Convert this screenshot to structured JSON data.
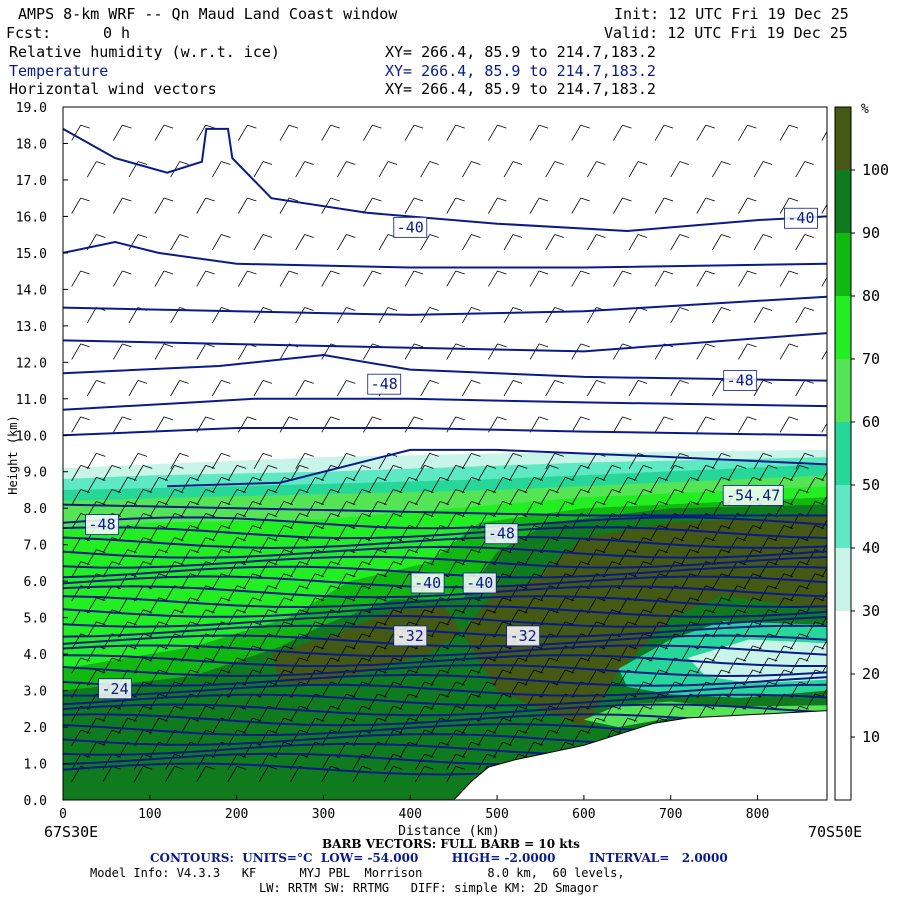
{
  "header": {
    "title": "AMPS 8-km WRF -- Qn Maud Land Coast window",
    "init": "Init: 12 UTC Fri 19 Dec 25",
    "fcst_label": "Fcst:",
    "fcst_value": "0 h",
    "valid": "Valid: 12 UTC Fri 19 Dec 25",
    "fields": [
      {
        "name": "Relative humidity (w.r.t. ice)",
        "xy": "XY= 266.4, 85.9 to 214.7,183.2"
      },
      {
        "name": "Temperature",
        "xy": "XY= 266.4, 85.9 to 214.7,183.2"
      },
      {
        "name": "Horizontal wind vectors",
        "xy": "XY= 266.4, 85.9 to 214.7,183.2"
      }
    ]
  },
  "footer": {
    "left_coord": "67S30E",
    "right_coord": "70S50E",
    "barb_note": "BARB VECTORS: FULL BARB = 10 kts",
    "contours_note": "CONTOURS:  UNITS=°C  LOW= -54.000        HIGH= -2.0000        INTERVAL=   2.0000",
    "model_info_1": "Model Info: V4.3.3   KF      MYJ PBL  Morrison         8.0 km,  60 levels,",
    "model_info_2": "LW: RRTM SW: RRTMG   DIFF: simple KM: 2D Smagor"
  },
  "colors": {
    "contour": "#0a1a8a",
    "rh_30_40": "#c8f5e8",
    "rh_40_50": "#5ee8c4",
    "rh_50_60": "#27d79a",
    "rh_60_70": "#55e455",
    "rh_70_80": "#22ee22",
    "rh_80_90": "#10b810",
    "rh_90_100": "#0f7a1e",
    "rh_100_plus": "#445a14",
    "terrain": "#ffffff"
  },
  "chart_data": {
    "type": "cross-section",
    "xlabel": "Distance (km)",
    "ylabel": "Height (km)",
    "xlim": [
      0,
      880
    ],
    "ylim": [
      0,
      19
    ],
    "x_ticks": [
      0,
      100,
      200,
      300,
      400,
      500,
      600,
      700,
      800
    ],
    "y_ticks": [
      "0.0",
      "1.0",
      "2.0",
      "3.0",
      "4.0",
      "5.0",
      "6.0",
      "7.0",
      "8.0",
      "9.0",
      "10.0",
      "11.0",
      "12.0",
      "13.0",
      "14.0",
      "15.0",
      "16.0",
      "17.0",
      "18.0",
      "19.0"
    ],
    "colorbar": {
      "unit": "%",
      "ticks": [
        "10",
        "20",
        "30",
        "40",
        "50",
        "60",
        "70",
        "80",
        "90",
        "100"
      ],
      "bins": [
        {
          "from": 0,
          "to": 30,
          "color": "#ffffff"
        },
        {
          "from": 30,
          "to": 40,
          "color": "#c8f5e8"
        },
        {
          "from": 40,
          "to": 50,
          "color": "#5ee8c4"
        },
        {
          "from": 50,
          "to": 60,
          "color": "#27d79a"
        },
        {
          "from": 60,
          "to": 70,
          "color": "#55e455"
        },
        {
          "from": 70,
          "to": 80,
          "color": "#22ee22"
        },
        {
          "from": 80,
          "to": 90,
          "color": "#10b810"
        },
        {
          "from": 90,
          "to": 100,
          "color": "#0f7a1e"
        },
        {
          "from": 100,
          "to": 110,
          "color": "#445a14"
        }
      ]
    },
    "terrain": [
      [
        0,
        0
      ],
      [
        450,
        0
      ],
      [
        470,
        0.5
      ],
      [
        490,
        0.9
      ],
      [
        520,
        1.1
      ],
      [
        560,
        1.3
      ],
      [
        600,
        1.5
      ],
      [
        640,
        1.8
      ],
      [
        680,
        2.1
      ],
      [
        720,
        2.25
      ],
      [
        760,
        2.3
      ],
      [
        800,
        2.35
      ],
      [
        840,
        2.4
      ],
      [
        880,
        2.45
      ]
    ],
    "contour_labels": [
      {
        "text": "-40",
        "x": 400,
        "y": 15.7
      },
      {
        "text": "-40",
        "x": 850,
        "y": 15.95
      },
      {
        "text": "-48",
        "x": 370,
        "y": 11.4
      },
      {
        "text": "-48",
        "x": 780,
        "y": 11.5
      },
      {
        "text": "-54.47",
        "x": 795,
        "y": 8.35
      },
      {
        "text": "-48",
        "x": 45,
        "y": 7.55
      },
      {
        "text": "-48",
        "x": 505,
        "y": 7.3
      },
      {
        "text": "-40",
        "x": 420,
        "y": 5.95
      },
      {
        "text": "-40",
        "x": 480,
        "y": 5.95
      },
      {
        "text": "-32",
        "x": 400,
        "y": 4.5
      },
      {
        "text": "-32",
        "x": 530,
        "y": 4.5
      },
      {
        "text": "-24",
        "x": 60,
        "y": 3.05
      }
    ]
  }
}
